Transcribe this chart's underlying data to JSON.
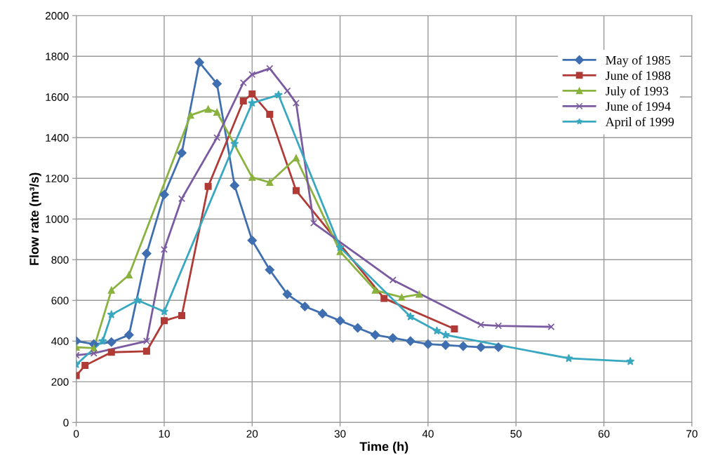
{
  "chart_data": {
    "type": "line",
    "xlabel": "Time (h)",
    "ylabel": "Flow rate (m³/s)",
    "xlim": [
      0,
      70
    ],
    "xticks": [
      0,
      10,
      20,
      30,
      40,
      50,
      60,
      70
    ],
    "ylim": [
      0,
      2000
    ],
    "yticks": [
      0,
      200,
      400,
      600,
      800,
      1000,
      1200,
      1400,
      1600,
      1800,
      2000
    ],
    "grid": true,
    "legend": "top right",
    "series": [
      {
        "name": "May of 1985",
        "color": "#3f6fb0",
        "marker": "diamond",
        "x": [
          0,
          2,
          4,
          6,
          8,
          10,
          12,
          14,
          16,
          18,
          20,
          22,
          24,
          26,
          28,
          30,
          32,
          34,
          36,
          38,
          40,
          42,
          44,
          46,
          48
        ],
        "values": [
          400,
          385,
          395,
          430,
          830,
          1120,
          1325,
          1770,
          1665,
          1165,
          895,
          750,
          630,
          570,
          535,
          500,
          465,
          430,
          415,
          400,
          385,
          380,
          375,
          370,
          370
        ]
      },
      {
        "name": "June of 1988",
        "color": "#b03a36",
        "marker": "square",
        "x": [
          0,
          1,
          4,
          8,
          10,
          12,
          15,
          19,
          20,
          22,
          25,
          35,
          43
        ],
        "values": [
          230,
          280,
          345,
          350,
          500,
          525,
          1160,
          1580,
          1615,
          1515,
          1140,
          610,
          460
        ]
      },
      {
        "name": "July of 1993",
        "color": "#8ab23f",
        "marker": "triangle",
        "x": [
          0,
          2,
          4,
          6,
          13,
          15,
          16,
          20,
          22,
          25,
          30,
          34,
          37,
          39
        ],
        "values": [
          370,
          365,
          650,
          725,
          1510,
          1540,
          1525,
          1205,
          1180,
          1300,
          840,
          650,
          615,
          630
        ]
      },
      {
        "name": "June of 1994",
        "color": "#7a5aa0",
        "marker": "cross",
        "x": [
          0,
          2,
          8,
          10,
          12,
          16,
          19,
          20,
          22,
          24,
          25,
          27,
          36,
          46,
          48,
          54
        ],
        "values": [
          330,
          340,
          400,
          850,
          1100,
          1400,
          1670,
          1710,
          1740,
          1630,
          1570,
          980,
          700,
          480,
          475,
          470
        ]
      },
      {
        "name": "April of 1999",
        "color": "#38a8c0",
        "marker": "star",
        "x": [
          0,
          3,
          4,
          7,
          10,
          18,
          20,
          23,
          30,
          38,
          41,
          42,
          56,
          63
        ],
        "values": [
          285,
          400,
          530,
          600,
          545,
          1370,
          1570,
          1610,
          860,
          520,
          450,
          430,
          315,
          300
        ]
      }
    ]
  }
}
